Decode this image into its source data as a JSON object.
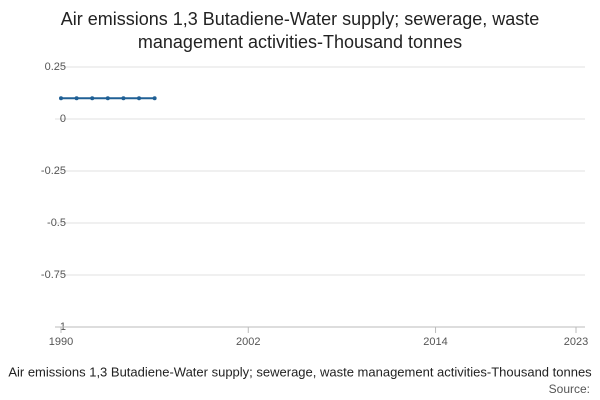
{
  "chart_data": {
    "type": "line",
    "title": "Air emissions 1,3 Butadiene-Water supply; sewerage, waste management activities-Thousand tonnes",
    "x": [
      1990,
      1991,
      1992,
      1993,
      1994,
      1995,
      1996
    ],
    "series": [
      {
        "name": "Air emissions 1,3 Butadiene-Water supply; sewerage, waste management activities-Thousand tonnes",
        "color": "#206095",
        "values": [
          0.1,
          0.1,
          0.1,
          0.1,
          0.1,
          0.1,
          0.1
        ]
      }
    ],
    "xlim": [
      1990,
      2023
    ],
    "xticks": [
      1990,
      2002,
      2014,
      2023
    ],
    "ylim": [
      -1,
      0.25
    ],
    "yticks": [
      -1,
      -0.75,
      -0.5,
      -0.25,
      0,
      0.25
    ],
    "grid": true,
    "source": "Source:"
  }
}
